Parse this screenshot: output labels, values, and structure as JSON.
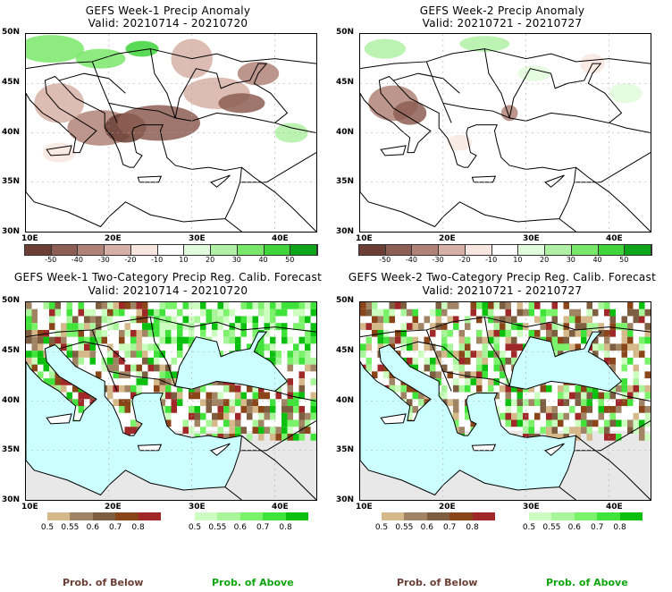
{
  "panels": [
    {
      "title": "GEFS Week-1 Precip Anomaly",
      "valid": "Valid: 20210714 - 20210720",
      "type": "anomaly",
      "seed": 3
    },
    {
      "title": "GEFS Week-2 Precip Anomaly",
      "valid": "Valid: 20210721 - 20210727",
      "type": "anomaly",
      "seed": 7
    },
    {
      "title": "GEFS Week-1 Two-Category Precip Reg. Calib. Forecast",
      "valid": "Valid: 20210714 - 20210720",
      "type": "prob",
      "seed": 11
    },
    {
      "title": "GEFS Week-2 Two-Category Precip Reg. Calib. Forecast",
      "valid": "Valid: 20210721 - 20210727",
      "type": "prob",
      "seed": 19
    }
  ],
  "axes": {
    "lat_labels": [
      "50N",
      "45N",
      "40N",
      "35N",
      "30N"
    ],
    "lon_labels": [
      "10E",
      "20E",
      "30E",
      "40E"
    ]
  },
  "anomaly_colorbar": {
    "colors": [
      "#6b3f35",
      "#8d5e54",
      "#b08378",
      "#d6b0a6",
      "#f7e6df",
      "#ffffff",
      "#e2fbdc",
      "#b0f0a5",
      "#79e86a",
      "#3ed43a",
      "#0ea51a"
    ],
    "labels": [
      "-50",
      "-40",
      "-30",
      "-20",
      "-10",
      "10",
      "20",
      "30",
      "40",
      "50"
    ]
  },
  "below_colorbar": {
    "colors": [
      "#d6b98a",
      "#a08464",
      "#7d5e40",
      "#8a4618",
      "#a02828"
    ],
    "labels": [
      "0.5",
      "0.55",
      "0.6",
      "0.7",
      "0.8"
    ]
  },
  "above_colorbar": {
    "colors": [
      "#ccffc0",
      "#a8f59a",
      "#7af26a",
      "#3fe33a",
      "#0bc00f"
    ],
    "labels": [
      "0.5",
      "0.55",
      "0.6",
      "0.7",
      "0.8"
    ]
  },
  "legend": {
    "below": "Prob. of Below",
    "above": "Prob. of Above",
    "below_color": "#6b3f35",
    "above_color": "#0fa50f"
  },
  "colors": {
    "sea": "#ccffff",
    "nodata": "#e8e8e8"
  },
  "chart_data": [
    {
      "type": "heatmap",
      "title": "GEFS Week-1 Precip Anomaly",
      "subtitle": "Valid: 20210714 - 20210720",
      "xlim": [
        10,
        45
      ],
      "ylim": [
        30,
        50
      ],
      "xticks": [
        "10E",
        "20E",
        "30E",
        "40E"
      ],
      "yticks": [
        "30N",
        "35N",
        "40N",
        "45N",
        "50N"
      ],
      "colorbar": [
        -50,
        -40,
        -30,
        -20,
        -10,
        10,
        20,
        30,
        40,
        50
      ]
    },
    {
      "type": "heatmap",
      "title": "GEFS Week-2 Precip Anomaly",
      "subtitle": "Valid: 20210721 - 20210727",
      "xlim": [
        10,
        45
      ],
      "ylim": [
        30,
        50
      ],
      "xticks": [
        "10E",
        "20E",
        "30E",
        "40E"
      ],
      "yticks": [
        "30N",
        "35N",
        "40N",
        "45N",
        "50N"
      ],
      "colorbar": [
        -50,
        -40,
        -30,
        -20,
        -10,
        10,
        20,
        30,
        40,
        50
      ]
    },
    {
      "type": "heatmap",
      "title": "GEFS Week-1 Two-Category Precip Reg. Calib. Forecast",
      "subtitle": "Valid: 20210714 - 20210720",
      "xlim": [
        10,
        45
      ],
      "ylim": [
        30,
        50
      ],
      "colorbar": [
        0.5,
        0.55,
        0.6,
        0.7,
        0.8
      ]
    },
    {
      "type": "heatmap",
      "title": "GEFS Week-2 Two-Category Precip Reg. Calib. Forecast",
      "subtitle": "Valid: 20210721 - 20210727",
      "xlim": [
        10,
        45
      ],
      "ylim": [
        30,
        50
      ],
      "colorbar": [
        0.5,
        0.55,
        0.6,
        0.7,
        0.8
      ]
    }
  ]
}
